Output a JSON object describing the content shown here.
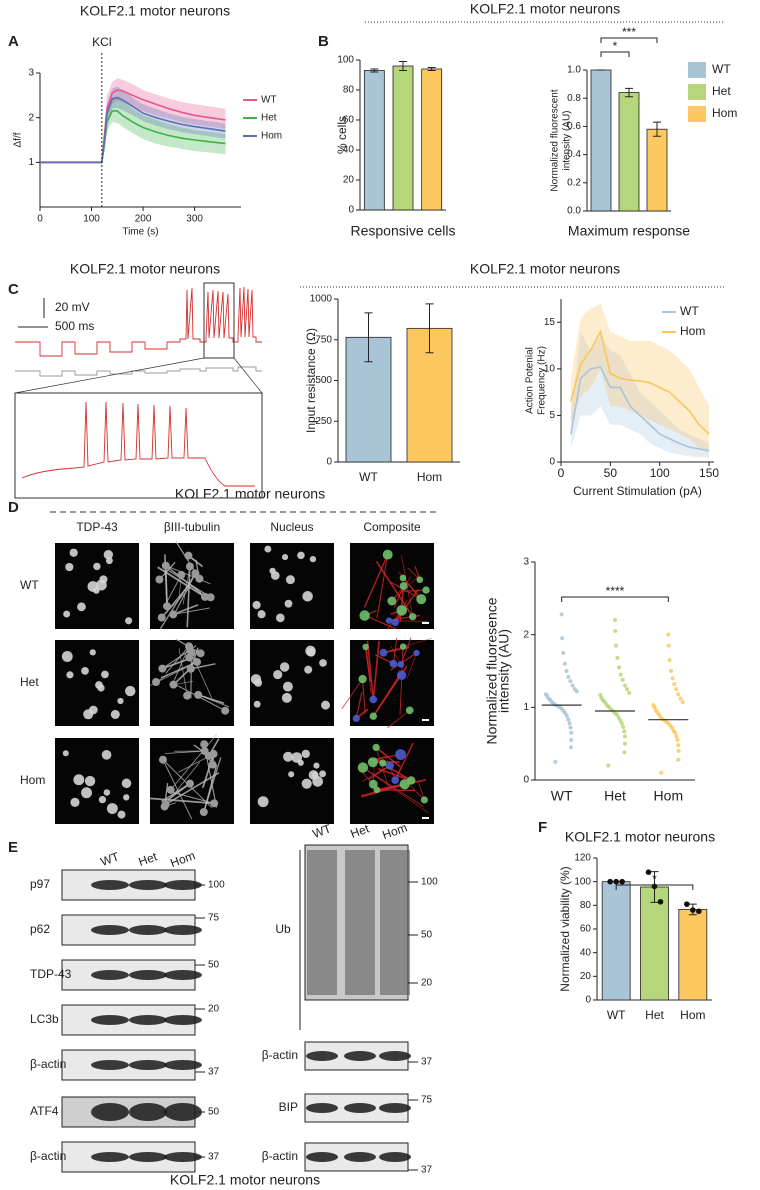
{
  "panel_labels": [
    "A",
    "B",
    "C",
    "D",
    "E",
    "F"
  ],
  "section_titles": {
    "B": "KOLF2.1 motor neurons",
    "C_traces": "KOLF2.1 motor neurons",
    "C_analysis": "KOLF2.1 motor neurons",
    "D": "KOLF2.1 motor neurons"
  },
  "electrophysiology": {
    "scale_voltage": "20 mV",
    "scale_time": "500 ms"
  },
  "microscopy": {
    "columns": [
      "TDP-43",
      "βIII-tubulin",
      "Nucleus",
      "Composite"
    ],
    "rows": [
      "WT",
      "Het",
      "Hom"
    ]
  },
  "western_blot": {
    "left": {
      "lanes": [
        "WT",
        "Het",
        "Hom"
      ],
      "rows": [
        {
          "label": "p97",
          "mw": 100
        },
        {
          "label": "p62",
          "mw": 75
        },
        {
          "label": "TDP-43",
          "mw": 50
        },
        {
          "label": "LC3b",
          "mw": 20
        },
        {
          "label": "β-actin",
          "mw": 37
        },
        {
          "label": "ATF4",
          "mw": 50
        },
        {
          "label": "β-actin",
          "mw": 37
        }
      ]
    },
    "right": {
      "lanes": [
        "WT",
        "Het",
        "Hom"
      ],
      "ub": {
        "label": "Ub",
        "mw": [
          100,
          50,
          20
        ]
      },
      "rows": [
        {
          "label": "β-actin",
          "mw": 37
        },
        {
          "label": "BIP",
          "mw": 75
        },
        {
          "label": "β-actin",
          "mw": 37
        }
      ]
    },
    "caption": "KOLF2.1 motor neurons"
  },
  "chart_data": [
    {
      "type": "line",
      "title": "KOLF2.1 motor neurons",
      "xlabel": "Time (s)",
      "ylabel": "Δf/f",
      "annotations": [
        {
          "text": "KCl",
          "x": 120
        }
      ],
      "x": [
        0,
        40,
        80,
        115,
        120,
        125,
        130,
        140,
        150,
        160,
        180,
        200,
        225,
        250,
        275,
        300,
        330,
        360
      ],
      "series": [
        {
          "name": "WT",
          "color": "#e8568f",
          "values": [
            1,
            1,
            1,
            1,
            1,
            1.6,
            2.2,
            2.55,
            2.62,
            2.6,
            2.5,
            2.4,
            2.3,
            2.2,
            2.12,
            2.05,
            2.0,
            1.95
          ],
          "upper": [
            1.03,
            1.03,
            1.03,
            1.03,
            1.03,
            1.8,
            2.5,
            2.8,
            2.88,
            2.85,
            2.75,
            2.62,
            2.52,
            2.43,
            2.35,
            2.3,
            2.25,
            2.2
          ],
          "lower": [
            0.97,
            0.97,
            0.97,
            0.97,
            0.97,
            1.4,
            1.95,
            2.3,
            2.38,
            2.35,
            2.25,
            2.15,
            2.05,
            1.98,
            1.9,
            1.85,
            1.8,
            1.75
          ]
        },
        {
          "name": "Het",
          "color": "#3bb34a",
          "values": [
            1,
            1,
            1,
            1,
            1,
            1.4,
            1.9,
            2.15,
            2.15,
            2.05,
            1.9,
            1.78,
            1.68,
            1.6,
            1.54,
            1.5,
            1.46,
            1.42
          ],
          "upper": [
            1.02,
            1.02,
            1.02,
            1.02,
            1.02,
            1.55,
            2.1,
            2.45,
            2.48,
            2.38,
            2.2,
            2.05,
            1.95,
            1.85,
            1.78,
            1.72,
            1.68,
            1.63
          ],
          "lower": [
            0.98,
            0.98,
            0.98,
            0.98,
            0.98,
            1.25,
            1.7,
            1.9,
            1.88,
            1.8,
            1.65,
            1.52,
            1.42,
            1.35,
            1.3,
            1.25,
            1.22,
            1.18
          ]
        },
        {
          "name": "Hom",
          "color": "#5b6fb5",
          "values": [
            1,
            1,
            1,
            1,
            1,
            1.5,
            2.1,
            2.42,
            2.45,
            2.4,
            2.25,
            2.1,
            2.0,
            1.92,
            1.85,
            1.8,
            1.75,
            1.7
          ],
          "upper": [
            1.02,
            1.02,
            1.02,
            1.02,
            1.02,
            1.65,
            2.3,
            2.65,
            2.7,
            2.62,
            2.45,
            2.3,
            2.2,
            2.1,
            2.02,
            1.97,
            1.92,
            1.87
          ],
          "lower": [
            0.98,
            0.98,
            0.98,
            0.98,
            0.98,
            1.35,
            1.9,
            2.2,
            2.22,
            2.17,
            2.05,
            1.92,
            1.82,
            1.74,
            1.68,
            1.63,
            1.58,
            1.53
          ]
        }
      ],
      "xlim": [
        0,
        390
      ],
      "xticks": [
        0,
        100,
        200,
        300
      ],
      "ylim": [
        0,
        3
      ],
      "yticks": [
        1,
        2,
        3
      ],
      "legend": "right"
    },
    {
      "type": "bar",
      "ylabel": "% cells",
      "xlabel": "Responsive cells",
      "categories": [
        null,
        null,
        null
      ],
      "values": [
        93,
        96,
        94
      ],
      "errors": [
        1,
        3,
        1
      ],
      "colors": [
        "#a9c4d6",
        "#b5d67a",
        "#fcc85f"
      ],
      "ylim": [
        0,
        100
      ],
      "yticks": [
        0,
        20,
        40,
        60,
        80,
        100
      ]
    },
    {
      "type": "bar",
      "ylabel": [
        "Normalized fluorescent",
        "intensity (AU)"
      ],
      "xlabel": "Maximum response",
      "categories": [
        null,
        null,
        null
      ],
      "values": [
        1.0,
        0.84,
        0.58
      ],
      "errors": [
        0,
        0.03,
        0.05
      ],
      "colors": [
        "#a9c4d6",
        "#b5d67a",
        "#fcc85f"
      ],
      "legend_labels": [
        "WT",
        "Het",
        "Hom"
      ],
      "significance": [
        "*",
        "***"
      ],
      "ylim": [
        0,
        1
      ],
      "yticks": [
        {
          "value": 0,
          "label": "0.0"
        },
        0.2,
        0.4,
        0.6,
        0.8,
        {
          "value": 1,
          "label": "1.0"
        }
      ]
    },
    {
      "type": "bar",
      "ylabel": "Input resistance (Ω)",
      "categories": [
        "WT",
        "Hom"
      ],
      "values": [
        765,
        820
      ],
      "errors": [
        150,
        150
      ],
      "colors": [
        "#a9c4d6",
        "#fcc85f"
      ],
      "ylim": [
        0,
        1000
      ],
      "yticks": [
        0,
        250,
        500,
        750,
        1000
      ]
    },
    {
      "type": "line",
      "xlabel": "Current Stimulation (pA)",
      "ylabel": [
        "Action Potenial",
        "Frequency (Hz)"
      ],
      "x": [
        10,
        20,
        30,
        40,
        50,
        60,
        70,
        80,
        90,
        100,
        110,
        120,
        130,
        140,
        150
      ],
      "series": [
        {
          "name": "WT",
          "color": "#a9c4dd",
          "values": [
            3,
            9,
            10,
            10.2,
            8,
            8,
            6,
            5,
            4,
            3,
            2.5,
            2,
            1.6,
            1.4,
            1.2
          ],
          "upper": [
            5,
            14,
            12,
            13.5,
            12,
            11.5,
            9.5,
            7.5,
            6.5,
            5.5,
            4.5,
            3.5,
            3,
            2.5,
            2
          ],
          "lower": [
            1.5,
            5,
            5,
            6,
            4,
            4,
            3.5,
            3,
            2,
            1.5,
            1,
            0.8,
            0.6,
            0.5,
            0.5
          ]
        },
        {
          "name": "Hom",
          "color": "#f9c55c",
          "values": [
            6.5,
            10.5,
            12,
            14,
            9.5,
            9,
            8.8,
            8.7,
            8.5,
            8,
            7.5,
            6.5,
            5.5,
            4,
            3
          ],
          "upper": [
            9,
            15.5,
            16.5,
            17,
            14,
            13.5,
            13,
            13,
            13,
            12.5,
            12,
            11,
            10,
            8,
            6
          ],
          "lower": [
            4,
            7,
            8,
            10,
            6,
            6,
            5.5,
            5,
            4.5,
            4,
            3.5,
            3,
            2.5,
            1.5,
            1
          ]
        }
      ],
      "xlim": [
        0,
        155
      ],
      "xticks": [
        0,
        50,
        100,
        150
      ],
      "ylim": [
        0,
        17.5
      ],
      "yticks": [
        0,
        5,
        10,
        15
      ],
      "legend": "upper right"
    },
    {
      "type": "strip",
      "ylabel": [
        "Normalized fluoresence",
        "intensity (AU)"
      ],
      "categories": [
        "WT",
        "Het",
        "Hom"
      ],
      "values": [
        1.03,
        0.95,
        0.83
      ],
      "colors": [
        "#a9c4d6",
        "#b5d67a",
        "#fcc85f"
      ],
      "significance": [
        "****"
      ],
      "points": [
        [
          0.25,
          0.45,
          0.55,
          0.65,
          0.72,
          0.78,
          0.83,
          0.88,
          0.92,
          0.95,
          0.98,
          1.0,
          1.02,
          1.03,
          1.05,
          1.07,
          1.1,
          1.12,
          1.15,
          1.18,
          1.22,
          1.25,
          1.3,
          1.36,
          1.42,
          1.5,
          1.6,
          1.75,
          1.95,
          2.28
        ],
        [
          0.2,
          0.38,
          0.5,
          0.6,
          0.67,
          0.73,
          0.78,
          0.82,
          0.86,
          0.9,
          0.92,
          0.95,
          0.97,
          1.0,
          1.02,
          1.05,
          1.08,
          1.1,
          1.13,
          1.17,
          1.2,
          1.25,
          1.3,
          1.38,
          1.45,
          1.55,
          1.68,
          1.85,
          2.05,
          2.2
        ],
        [
          0.1,
          0.28,
          0.4,
          0.48,
          0.55,
          0.6,
          0.65,
          0.68,
          0.72,
          0.75,
          0.78,
          0.8,
          0.82,
          0.84,
          0.87,
          0.9,
          0.93,
          0.96,
          1.0,
          1.03,
          1.07,
          1.12,
          1.18,
          1.25,
          1.32,
          1.4,
          1.5,
          1.65,
          1.85,
          2.0
        ]
      ],
      "ylim": [
        0,
        3
      ],
      "yticks": [
        0,
        1,
        2,
        3
      ]
    },
    {
      "type": "bar",
      "title": "KOLF2.1 motor neurons",
      "ylabel": "Normalized viability (%)",
      "categories": [
        "WT",
        "Het",
        "Hom"
      ],
      "values": [
        100,
        95.5,
        76.5
      ],
      "errors": [
        0,
        13,
        4.5
      ],
      "points": [
        [
          100,
          100,
          100
        ],
        [
          108,
          96,
          83
        ],
        [
          81,
          76,
          75
        ]
      ],
      "significance": [
        "*"
      ],
      "colors": [
        "#a9c4d6",
        "#b5d67a",
        "#fcc85f"
      ],
      "ylim": [
        0,
        120
      ],
      "yticks": [
        0,
        20,
        40,
        60,
        80,
        100,
        120
      ]
    }
  ]
}
